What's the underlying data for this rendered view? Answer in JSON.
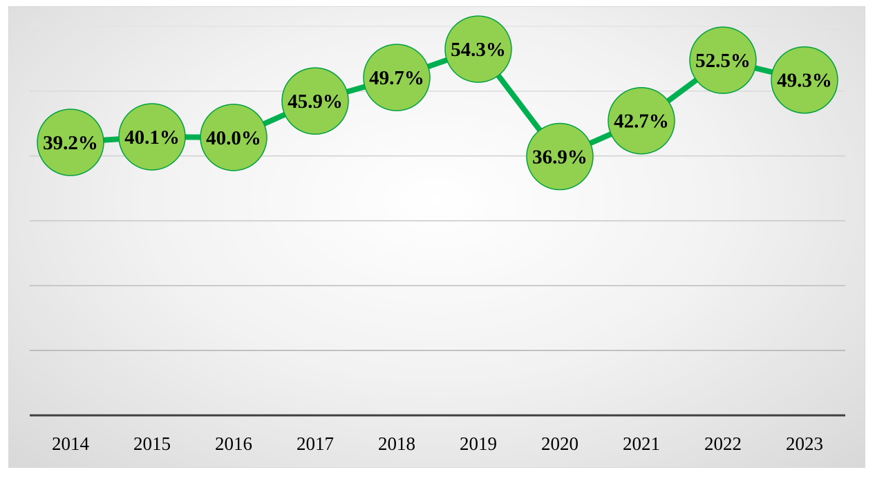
{
  "chart_data": {
    "type": "line",
    "categories": [
      "2014",
      "2015",
      "2016",
      "2017",
      "2018",
      "2019",
      "2020",
      "2021",
      "2022",
      "2023"
    ],
    "series": [
      {
        "values": [
          39.2,
          40.1,
          40.0,
          45.9,
          49.7,
          54.3,
          36.9,
          42.7,
          52.5,
          49.3
        ],
        "labels": [
          "39.2%",
          "40.1%",
          "40.0%",
          "45.9%",
          "49.7%",
          "54.3%",
          "36.9%",
          "42.7%",
          "52.5%",
          "49.3%"
        ]
      }
    ],
    "ylim": [
      -5,
      58
    ],
    "grid": true,
    "legend": "none",
    "colors": {
      "line": "#00b050",
      "marker_fill": "#92d050",
      "marker_stroke": "#00a040",
      "gridline": "#c0c0c0",
      "axis": "#404040"
    }
  }
}
